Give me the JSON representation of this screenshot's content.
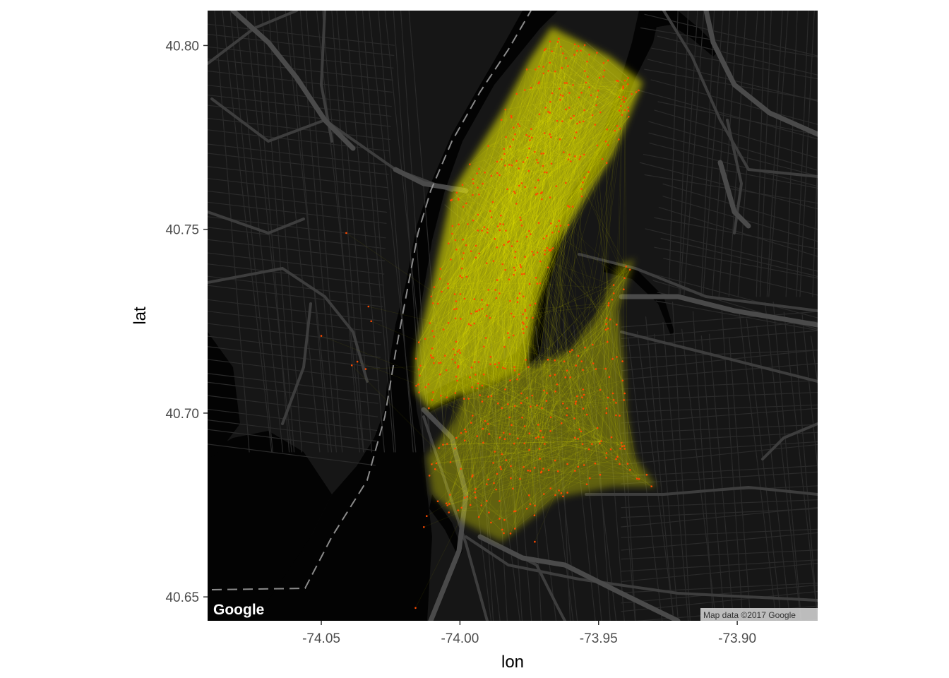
{
  "map": {
    "base_layer": "dark street map of Manhattan, Brooklyn and Jersey City",
    "colors": {
      "land": "#161616",
      "water": "#030303",
      "minor_road": "#2a2a2a",
      "major_road": "#3d3d3d",
      "highway": "#4a4a4a",
      "boundary_line": "#9a9a9a",
      "flow_lines": "#ffff00",
      "stations": "#ff4a00",
      "attribution_box": "#d9d9d9"
    },
    "logo_text": "Google",
    "attribution": "Map data ©2017 Google"
  },
  "chart_data": {
    "type": "scatter",
    "title": "",
    "xlabel": "lon",
    "ylabel": "lat",
    "xlim": [
      -74.091,
      -73.871
    ],
    "ylim": [
      40.6435,
      40.8095
    ],
    "x_ticks": [
      -74.05,
      -74.0,
      -73.95,
      -73.9
    ],
    "x_tick_labels": [
      "-74.05",
      "-74.00",
      "-73.95",
      "-73.90"
    ],
    "y_ticks": [
      40.65,
      40.7,
      40.75,
      40.8
    ],
    "y_tick_labels": [
      "40.65",
      "40.70",
      "40.75",
      "40.80"
    ],
    "layers": [
      {
        "kind": "segments",
        "description": "bike trips between stations",
        "color": "#ffff00",
        "alpha": "low"
      },
      {
        "kind": "points",
        "description": "bike share stations",
        "color": "#ff4a00"
      }
    ],
    "station_region": {
      "manhattan_outline_lon_lat": [
        [
          -73.967,
          40.805
        ],
        [
          -73.946,
          40.797
        ],
        [
          -73.934,
          40.79
        ],
        [
          -73.945,
          40.77
        ],
        [
          -73.966,
          40.745
        ],
        [
          -73.972,
          40.73
        ],
        [
          -73.976,
          40.712
        ],
        [
          -74.0,
          40.705
        ],
        [
          -74.011,
          40.701
        ],
        [
          -74.016,
          40.706
        ],
        [
          -74.016,
          40.716
        ],
        [
          -74.01,
          40.735
        ],
        [
          -74.003,
          40.76
        ],
        [
          -73.985,
          40.782
        ],
        [
          -73.975,
          40.796
        ]
      ],
      "brooklyn_outline_lon_lat": [
        [
          -73.998,
          40.706
        ],
        [
          -73.96,
          40.717
        ],
        [
          -73.95,
          40.727
        ],
        [
          -73.943,
          40.74
        ],
        [
          -73.937,
          40.742
        ],
        [
          -73.943,
          40.728
        ],
        [
          -73.941,
          40.714
        ],
        [
          -73.94,
          40.7
        ],
        [
          -73.937,
          40.688
        ],
        [
          -73.929,
          40.68
        ],
        [
          -73.945,
          40.68
        ],
        [
          -73.965,
          40.677
        ],
        [
          -73.985,
          40.665
        ],
        [
          -73.998,
          40.67
        ],
        [
          -74.01,
          40.678
        ],
        [
          -74.012,
          40.688
        ],
        [
          -74.002,
          40.698
        ]
      ],
      "manhattan_station_count": 420,
      "brooklyn_station_count": 240
    },
    "isolated_stations_lon_lat": [
      [
        -74.041,
        40.749
      ],
      [
        -74.033,
        40.729
      ],
      [
        -74.032,
        40.725
      ],
      [
        -74.05,
        40.721
      ],
      [
        -74.037,
        40.714
      ],
      [
        -74.034,
        40.712
      ],
      [
        -74.039,
        40.713
      ],
      [
        -74.016,
        40.647
      ],
      [
        -74.013,
        40.669
      ],
      [
        -74.011,
        40.683
      ],
      [
        -74.012,
        40.672
      ],
      [
        -74.008,
        40.676
      ],
      [
        -74.004,
        40.673
      ],
      [
        -73.973,
        40.665
      ]
    ]
  }
}
